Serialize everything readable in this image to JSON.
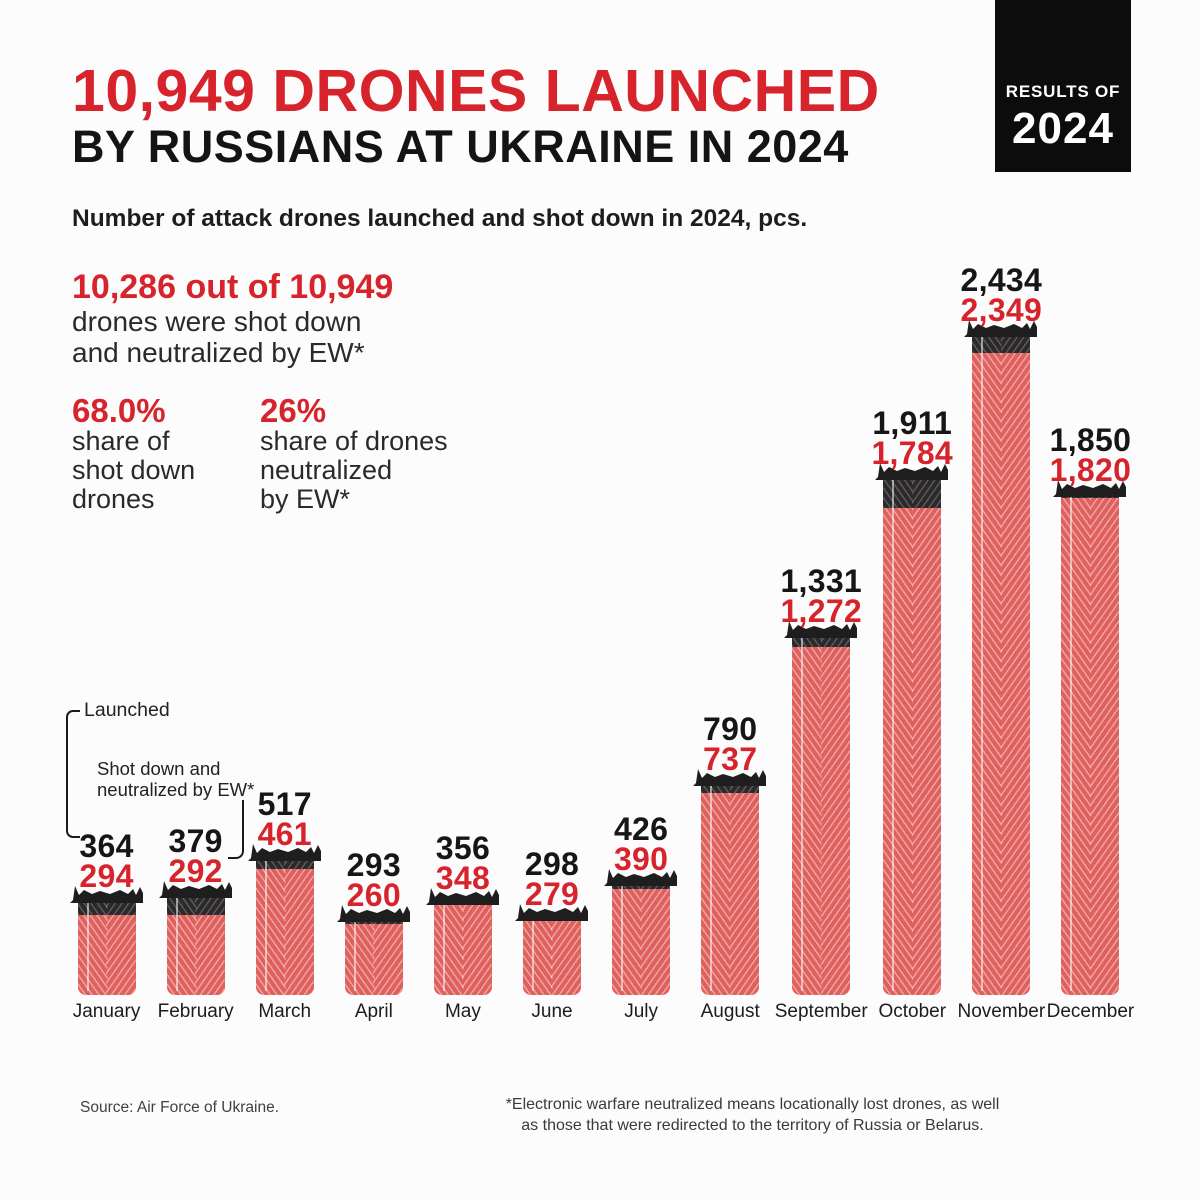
{
  "header": {
    "title_red": "10,949 DRONES LAUNCHED",
    "title_black": "BY RUSSIANS AT UKRAINE IN 2024",
    "badge_line1": "RESULTS OF",
    "badge_line2": "2024"
  },
  "subtitle": "Number of attack drones launched and shot down in 2024, pcs.",
  "stats": {
    "headline": "10,286 out of 10,949",
    "sub_lines": [
      "drones were shot down",
      "and neutralized by EW*"
    ],
    "share1_value": "68.0%",
    "share1_lines": [
      "share of",
      "shot down",
      "drones"
    ],
    "share2_value": "26%",
    "share2_lines": [
      "share of drones",
      "neutralized",
      "by EW*"
    ]
  },
  "legend": {
    "launched": "Launched",
    "shot_line1": "Shot down and",
    "shot_line2": "neutralized by EW*"
  },
  "chart_data": {
    "type": "bar",
    "title": "Number of attack drones launched and shot down in 2024, pcs.",
    "categories": [
      "January",
      "February",
      "March",
      "April",
      "May",
      "June",
      "July",
      "August",
      "September",
      "October",
      "November",
      "December"
    ],
    "series": [
      {
        "name": "Launched",
        "color": "#2b292a",
        "values": [
          364,
          379,
          517,
          293,
          356,
          298,
          426,
          790,
          1331,
          1911,
          2434,
          1850
        ]
      },
      {
        "name": "Shot down and neutralized by EW*",
        "color": "#e0605e",
        "values": [
          294,
          292,
          461,
          260,
          348,
          279,
          390,
          737,
          1272,
          1784,
          2349,
          1820
        ]
      }
    ],
    "xlabel": "",
    "ylabel": "",
    "ylim": [
      0,
      2434
    ],
    "grid": false,
    "legend_position": "left-middle",
    "value_labels": "above-bars"
  },
  "footer": {
    "source": "Source: Air Force of Ukraine.",
    "note1": "*Electronic warfare neutralized means locationally lost drones, as well",
    "note2": "as those that were redirected to the territory of Russia or Belarus."
  },
  "colors": {
    "accent_red": "#d7242c",
    "bar_red": "#e0605e",
    "bar_dark": "#2b292a",
    "badge_bg": "#0c0c0c",
    "background": "#fcfcfc"
  }
}
